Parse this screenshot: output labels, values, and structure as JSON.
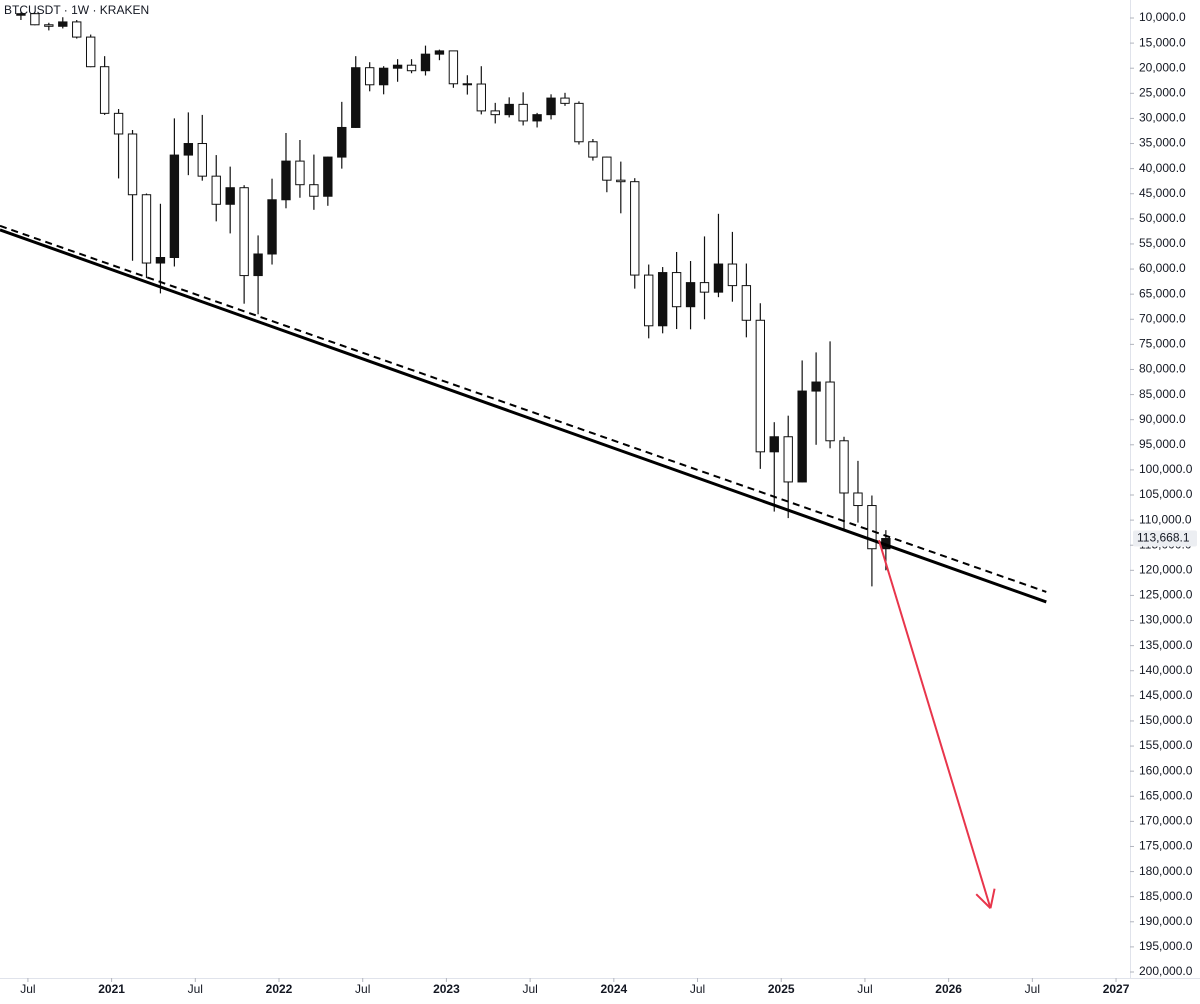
{
  "chart_data": {
    "type": "candlestick",
    "title": "BTCUSDT · 1W · KRAKEN",
    "inverted": true,
    "color": "#111111",
    "up_fill": "#ffffff",
    "xlim": [
      "2020-05",
      "2027-02"
    ],
    "xticks": [
      {
        "value": "2020-07",
        "label": "Jul"
      },
      {
        "value": "2021-01",
        "label": "2021"
      },
      {
        "value": "2021-07",
        "label": "Jul"
      },
      {
        "value": "2022-01",
        "label": "2022"
      },
      {
        "value": "2022-07",
        "label": "Jul"
      },
      {
        "value": "2023-01",
        "label": "2023"
      },
      {
        "value": "2023-07",
        "label": "Jul"
      },
      {
        "value": "2024-01",
        "label": "2024"
      },
      {
        "value": "2024-07",
        "label": "Jul"
      },
      {
        "value": "2025-01",
        "label": "2025"
      },
      {
        "value": "2025-07",
        "label": "Jul"
      },
      {
        "value": "2026-01",
        "label": "2026"
      },
      {
        "value": "2026-07",
        "label": "Jul"
      },
      {
        "value": "2027-01",
        "label": "2027"
      }
    ],
    "ylim": [
      10000,
      200000
    ],
    "yticks": [
      {
        "value": 10000,
        "label": "10,000.0"
      },
      {
        "value": 15000,
        "label": "15,000.0"
      },
      {
        "value": 20000,
        "label": "20,000.0"
      },
      {
        "value": 25000,
        "label": "25,000.0"
      },
      {
        "value": 30000,
        "label": "30,000.0"
      },
      {
        "value": 35000,
        "label": "35,000.0"
      },
      {
        "value": 40000,
        "label": "40,000.0"
      },
      {
        "value": 45000,
        "label": "45,000.0"
      },
      {
        "value": 50000,
        "label": "50,000.0"
      },
      {
        "value": 55000,
        "label": "55,000.0"
      },
      {
        "value": 60000,
        "label": "60,000.0"
      },
      {
        "value": 65000,
        "label": "65,000.0"
      },
      {
        "value": 70000,
        "label": "70,000.0"
      },
      {
        "value": 75000,
        "label": "75,000.0"
      },
      {
        "value": 80000,
        "label": "80,000.0"
      },
      {
        "value": 85000,
        "label": "85,000.0"
      },
      {
        "value": 90000,
        "label": "90,000.0"
      },
      {
        "value": 95000,
        "label": "95,000.0"
      },
      {
        "value": 100000,
        "label": "100,000.0"
      },
      {
        "value": 105000,
        "label": "105,000.0"
      },
      {
        "value": 110000,
        "label": "110,000.0"
      },
      {
        "value": 115000,
        "label": "115,000.0"
      },
      {
        "value": 120000,
        "label": "120,000.0"
      },
      {
        "value": 125000,
        "label": "125,000.0"
      },
      {
        "value": 130000,
        "label": "130,000.0"
      },
      {
        "value": 135000,
        "label": "135,000.0"
      },
      {
        "value": 140000,
        "label": "140,000.0"
      },
      {
        "value": 145000,
        "label": "145,000.0"
      },
      {
        "value": 150000,
        "label": "150,000.0"
      },
      {
        "value": 155000,
        "label": "155,000.0"
      },
      {
        "value": 160000,
        "label": "160,000.0"
      },
      {
        "value": 165000,
        "label": "165,000.0"
      },
      {
        "value": 170000,
        "label": "170,000.0"
      },
      {
        "value": 175000,
        "label": "175,000.0"
      },
      {
        "value": 180000,
        "label": "180,000.0"
      },
      {
        "value": 185000,
        "label": "185,000.0"
      },
      {
        "value": 190000,
        "label": "190,000.0"
      },
      {
        "value": 195000,
        "label": "195,000.0"
      },
      {
        "value": 200000,
        "label": "200,000.0"
      }
    ],
    "last_price": {
      "value": 113668.1,
      "label": "113,668.1"
    },
    "x": [
      "2020-06",
      "2020-07",
      "2020-08",
      "2020-09",
      "2020-10",
      "2020-11",
      "2020-12",
      "2021-01",
      "2021-02",
      "2021-03",
      "2021-04",
      "2021-05",
      "2021-06",
      "2021-07",
      "2021-08",
      "2021-09",
      "2021-10",
      "2021-11",
      "2021-12",
      "2022-01",
      "2022-02",
      "2022-03",
      "2022-04",
      "2022-05",
      "2022-06",
      "2022-07",
      "2022-08",
      "2022-09",
      "2022-10",
      "2022-11",
      "2022-12",
      "2023-01",
      "2023-02",
      "2023-03",
      "2023-04",
      "2023-05",
      "2023-06",
      "2023-07",
      "2023-08",
      "2023-09",
      "2023-10",
      "2023-11",
      "2023-12",
      "2024-01",
      "2024-02",
      "2024-03",
      "2024-04",
      "2024-05",
      "2024-06",
      "2024-07",
      "2024-08",
      "2024-09",
      "2024-10",
      "2024-11",
      "2024-12",
      "2025-01",
      "2025-02",
      "2025-03",
      "2025-04",
      "2025-05",
      "2025-06",
      "2025-07",
      "2025-08"
    ],
    "ohlc": [
      [
        9450,
        10400,
        8900,
        9140
      ],
      [
        9140,
        11450,
        8980,
        11350
      ],
      [
        11350,
        12470,
        10950,
        11650
      ],
      [
        11650,
        12080,
        9850,
        10780
      ],
      [
        10780,
        14100,
        10400,
        13800
      ],
      [
        13800,
        19800,
        13300,
        19700
      ],
      [
        19700,
        29300,
        17600,
        28990
      ],
      [
        28990,
        41950,
        28130,
        33100
      ],
      [
        33100,
        58350,
        32300,
        45200
      ],
      [
        45200,
        61800,
        44950,
        58800
      ],
      [
        58800,
        64850,
        47000,
        57700
      ],
      [
        57700,
        59500,
        30000,
        37300
      ],
      [
        37300,
        41300,
        28800,
        35000
      ],
      [
        35000,
        42400,
        29300,
        41500
      ],
      [
        41500,
        50500,
        37300,
        47100
      ],
      [
        47100,
        52900,
        39600,
        43800
      ],
      [
        43800,
        66900,
        43300,
        61300
      ],
      [
        61300,
        69000,
        53300,
        57000
      ],
      [
        57000,
        59100,
        42000,
        46200
      ],
      [
        46200,
        47900,
        32900,
        38500
      ],
      [
        38500,
        45800,
        34300,
        43200
      ],
      [
        43200,
        48200,
        37200,
        45500
      ],
      [
        45500,
        47400,
        37600,
        37700
      ],
      [
        37700,
        40000,
        26700,
        31800
      ],
      [
        31800,
        31900,
        17600,
        19900
      ],
      [
        19900,
        24600,
        18800,
        23300
      ],
      [
        23300,
        25200,
        19600,
        20000
      ],
      [
        20000,
        22700,
        18200,
        19400
      ],
      [
        19400,
        21000,
        18200,
        20500
      ],
      [
        20500,
        21450,
        15500,
        17200
      ],
      [
        17200,
        18400,
        16300,
        16550
      ],
      [
        16550,
        23900,
        16500,
        23100
      ],
      [
        23100,
        25250,
        21400,
        23150
      ],
      [
        23150,
        29200,
        19600,
        28500
      ],
      [
        28500,
        31000,
        26900,
        29250
      ],
      [
        29250,
        29800,
        25800,
        27200
      ],
      [
        27200,
        31400,
        24800,
        30500
      ],
      [
        30500,
        31800,
        28900,
        29250
      ],
      [
        29250,
        30200,
        25200,
        25950
      ],
      [
        25950,
        27500,
        24900,
        27000
      ],
      [
        27000,
        35200,
        26600,
        34650
      ],
      [
        34650,
        38400,
        34100,
        37700
      ],
      [
        37700,
        44700,
        37600,
        42300
      ],
      [
        42300,
        48900,
        38600,
        42600
      ],
      [
        42600,
        63900,
        41900,
        61200
      ],
      [
        61200,
        73800,
        59100,
        71300
      ],
      [
        71300,
        72800,
        59600,
        60700
      ],
      [
        60700,
        71950,
        56600,
        67500
      ],
      [
        67500,
        72000,
        58400,
        62700
      ],
      [
        62700,
        70000,
        53500,
        64600
      ],
      [
        64600,
        65600,
        49000,
        59000
      ],
      [
        59000,
        66500,
        52600,
        63300
      ],
      [
        63300,
        73600,
        58900,
        70200
      ],
      [
        70200,
        99800,
        66800,
        96400
      ],
      [
        96400,
        108300,
        90500,
        93400
      ],
      [
        93400,
        109600,
        89200,
        102400
      ],
      [
        102400,
        102500,
        78200,
        84300
      ],
      [
        84300,
        95000,
        76600,
        82500
      ],
      [
        82500,
        95700,
        74400,
        94200
      ],
      [
        94200,
        111900,
        93400,
        104600
      ],
      [
        104600,
        110500,
        98200,
        107100
      ],
      [
        107100,
        123200,
        105100,
        115700
      ],
      [
        115700,
        120000,
        112000,
        113668.1
      ]
    ],
    "lines": [
      {
        "style": "solid",
        "color": "#000000",
        "x": [
          "2020-05",
          "2026-08"
        ],
        "values": [
          52200,
          126300
        ]
      },
      {
        "style": "dashed",
        "color": "#000000",
        "x": [
          "2020-05",
          "2026-08"
        ],
        "values": [
          51400,
          124300
        ]
      }
    ],
    "arrow": {
      "color": "#e8354b",
      "x": [
        "2025-08",
        "2026-04"
      ],
      "values": [
        114000,
        187300
      ]
    }
  }
}
